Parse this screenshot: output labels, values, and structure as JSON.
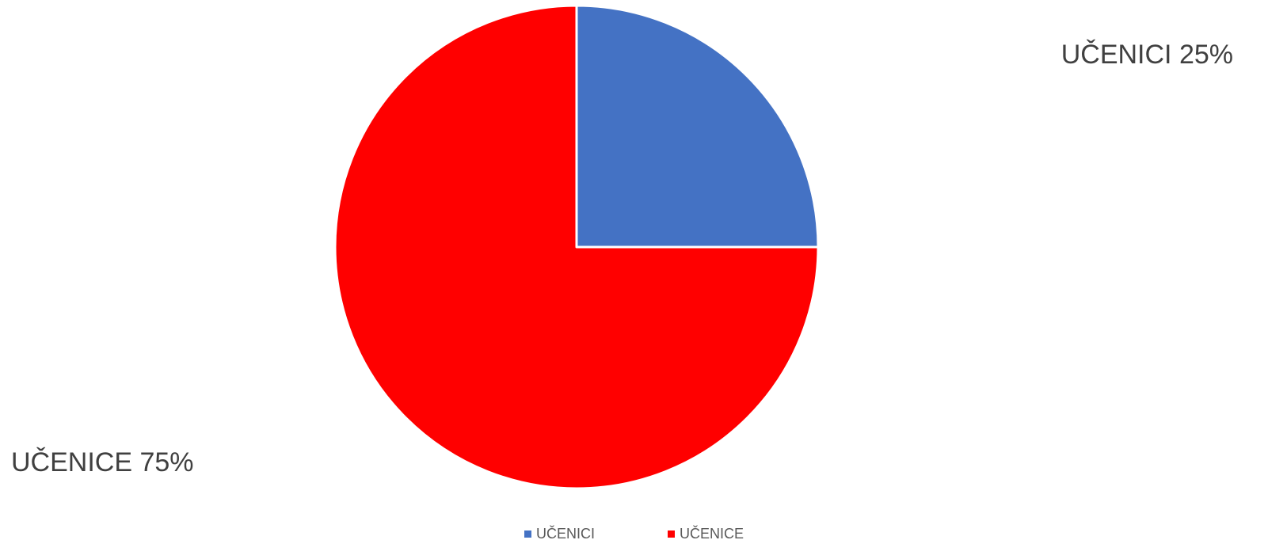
{
  "chart_data": {
    "type": "pie",
    "title": "",
    "slices": [
      {
        "name": "UČENICI",
        "value": 25,
        "color": "#4472C4",
        "label": "UČENICI 25%"
      },
      {
        "name": "UČENICE",
        "value": 75,
        "color": "#FF0000",
        "label": "UČENICE 75%"
      }
    ],
    "start_angle_deg": 0,
    "direction": "clockwise",
    "legend": {
      "placement": "bottom",
      "entries": [
        "UČENICI",
        "UČENICE"
      ]
    }
  }
}
